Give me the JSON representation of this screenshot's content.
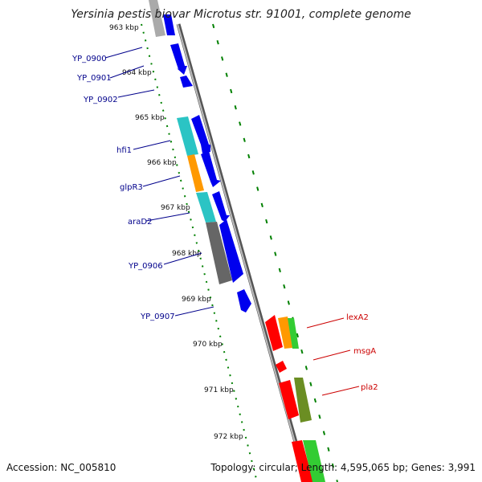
{
  "title": "Yersinia pestis biovar Microtus str. 91001, complete genome",
  "footer": {
    "accession": "Accession: NC_005810",
    "topology": "Topology: circular; Length: 4,595,065 bp; Genes: 3,991"
  },
  "ticks": [
    "963 kbp",
    "964 kbp",
    "965 kbp",
    "966 kbp",
    "967 kbp",
    "968 kbp",
    "969 kbp",
    "970 kbp",
    "971 kbp",
    "972 kbp"
  ],
  "left_labels": [
    "YP_0900",
    "YP_0901",
    "YP_0902",
    "hfi1",
    "glpR3",
    "araD2",
    "YP_0906",
    "YP_0907"
  ],
  "right_labels": [
    "lexA2",
    "msgA",
    "pla2"
  ],
  "colors": {
    "forward_gene": "#0000ee",
    "cyan_gene": "#2bc4c4",
    "orange_gene": "#ff9900",
    "gray_gene": "#666666",
    "red_gene": "#ff0000",
    "olive_gene": "#6b8e23",
    "green_gene": "#33cc33",
    "dotted_track": "#008000",
    "left_label": "#00008b",
    "right_label": "#cc0000",
    "backbone": "#999999"
  }
}
